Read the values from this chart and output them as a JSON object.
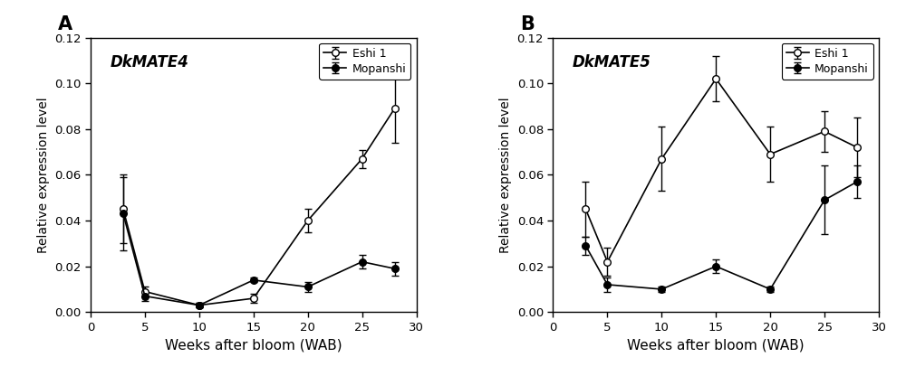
{
  "x": [
    3,
    5,
    10,
    15,
    20,
    25,
    28
  ],
  "A_Eshi1_y": [
    0.045,
    0.009,
    0.003,
    0.006,
    0.04,
    0.067,
    0.089
  ],
  "A_Eshi1_err": [
    0.015,
    0.002,
    0.001,
    0.002,
    0.005,
    0.004,
    0.015
  ],
  "A_Mopanshi_y": [
    0.043,
    0.007,
    0.003,
    0.014,
    0.011,
    0.022,
    0.019
  ],
  "A_Mopanshi_err": [
    0.016,
    0.002,
    0.001,
    0.001,
    0.002,
    0.003,
    0.003
  ],
  "B_Eshi1_y": [
    0.045,
    0.022,
    0.067,
    0.102,
    0.069,
    0.079,
    0.072
  ],
  "B_Eshi1_err": [
    0.012,
    0.006,
    0.014,
    0.01,
    0.012,
    0.009,
    0.013
  ],
  "B_Mopanshi_y": [
    0.029,
    0.012,
    0.01,
    0.02,
    0.01,
    0.049,
    0.057
  ],
  "B_Mopanshi_err": [
    0.004,
    0.003,
    0.001,
    0.003,
    0.001,
    0.015,
    0.007
  ],
  "title_A": "DkMATE4",
  "title_B": "DkMATE5",
  "legend_open": "Eshi 1",
  "legend_filled": "Mopanshi",
  "xlabel": "Weeks after bloom (WAB)",
  "ylabel": "Relative expression level",
  "xlim": [
    0,
    30
  ],
  "ylim": [
    0.0,
    0.12
  ],
  "yticks": [
    0.0,
    0.02,
    0.04,
    0.06,
    0.08,
    0.1,
    0.12
  ],
  "xticks": [
    0,
    5,
    10,
    15,
    20,
    25,
    30
  ],
  "label_A": "A",
  "label_B": "B"
}
